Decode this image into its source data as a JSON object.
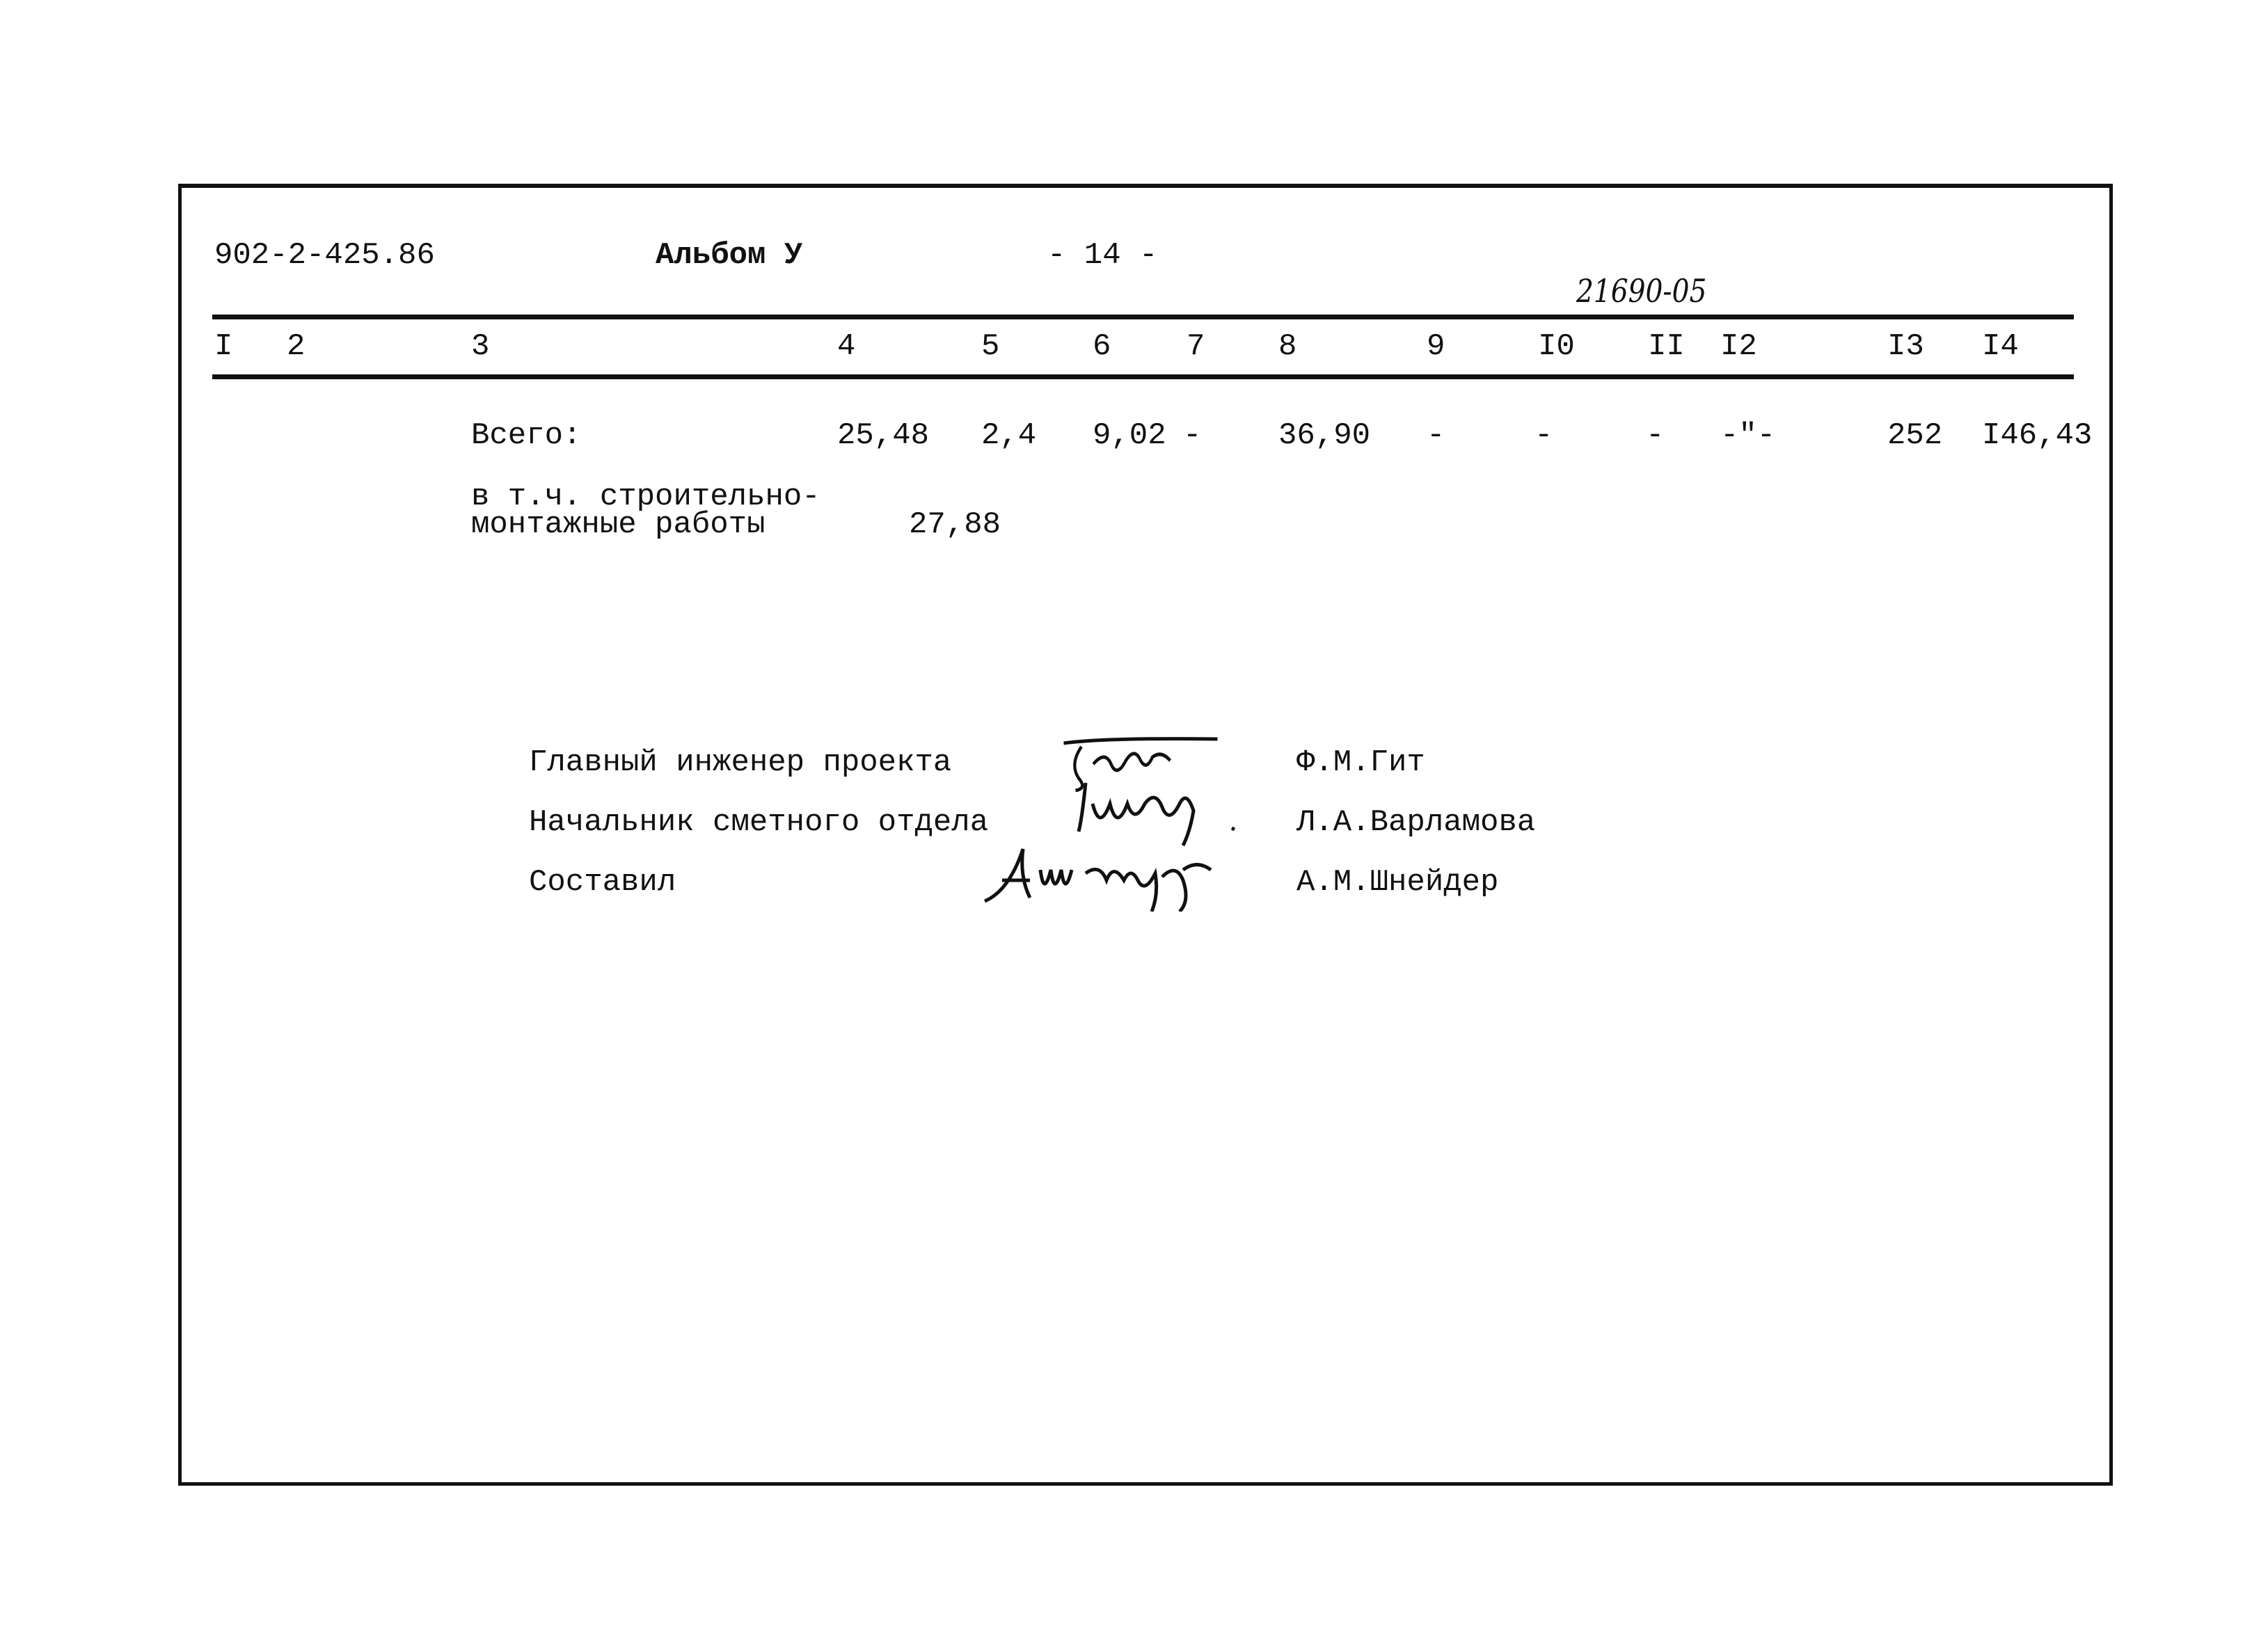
{
  "header": {
    "doc_code": "902-2-425.86",
    "album": "Альбом У",
    "page": "- 14 -",
    "stamp_number": "21690-05"
  },
  "columns": [
    "I",
    "2",
    "3",
    "4",
    "5",
    "6",
    "7",
    "8",
    "9",
    "I0",
    "II",
    "I2",
    "I3",
    "I4"
  ],
  "total_row": {
    "label": "Всего:",
    "values": [
      "25,48",
      "2,4",
      "9,02",
      "-",
      "36,90",
      "-",
      "-",
      "-",
      "-\"-",
      "252",
      "I46,43"
    ]
  },
  "sub_row": {
    "label_line1": "в т.ч. строительно-",
    "label_line2": "монтажные работы",
    "value": "27,88"
  },
  "signatures": [
    {
      "role": "Главный инженер проекта",
      "name": "Ф.М.Гит",
      "signature": "Фгит"
    },
    {
      "role": "Начальник сметного отдела",
      "name": "Л.А.Варламова",
      "signature": "Щеил"
    },
    {
      "role": "Составил",
      "name": "А.М.Шнейдер",
      "signature": "АШнейдер"
    }
  ]
}
